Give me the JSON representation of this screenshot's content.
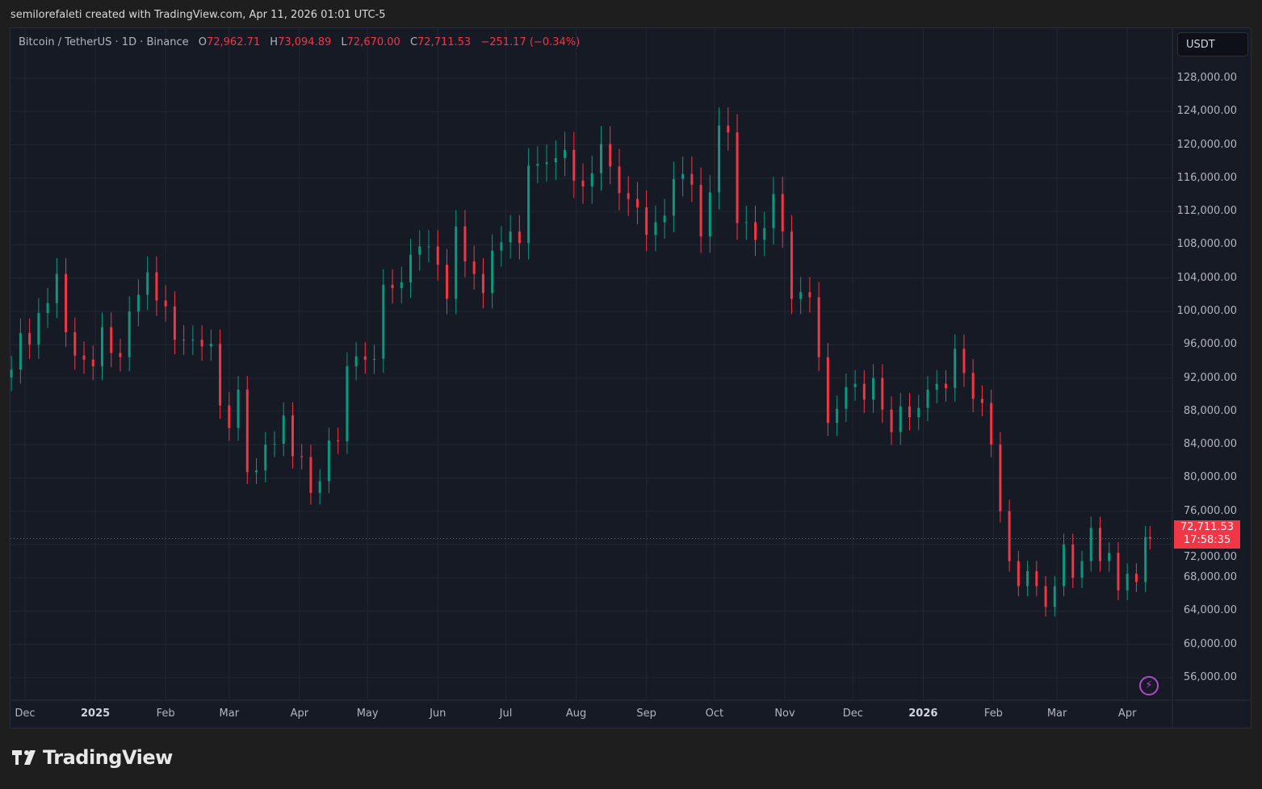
{
  "caption": "semilorefaleti created with TradingView.com, Apr 11, 2026 01:01 UTC-5",
  "legend": {
    "symbol": "Bitcoin / TetherUS · 1D · Binance",
    "open_label": "O",
    "open": "72,962.71",
    "high_label": "H",
    "high": "73,094.89",
    "low_label": "L",
    "low": "72,670.00",
    "close_label": "C",
    "close": "72,711.53",
    "change": "−251.17 (−0.34%)"
  },
  "currency_button": "USDT",
  "last_price": {
    "price": "72,711.53",
    "countdown": "17:58:35"
  },
  "logo_text": "TradingView",
  "alert_icon": "lightning-icon",
  "colors": {
    "up": "#089981",
    "down": "#f23645",
    "background": "#161a25",
    "grid": "#232733"
  },
  "chart_data": {
    "type": "candlestick",
    "ylim": [
      54000,
      130000
    ],
    "grid": true,
    "y_ticks": [
      "128,000.00",
      "124,000.00",
      "120,000.00",
      "116,000.00",
      "112,000.00",
      "108,000.00",
      "104,000.00",
      "100,000.00",
      "96,000.00",
      "92,000.00",
      "88,000.00",
      "84,000.00",
      "80,000.00",
      "76,000.00",
      "72,000.00",
      "68,000.00",
      "64,000.00",
      "60,000.00",
      "56,000.00"
    ],
    "x_ticks": [
      {
        "label": "Dec",
        "date": "2024-12-01"
      },
      {
        "label": "2025",
        "date": "2025-01-01",
        "bold": true
      },
      {
        "label": "Feb",
        "date": "2025-02-01"
      },
      {
        "label": "Mar",
        "date": "2025-03-01"
      },
      {
        "label": "Apr",
        "date": "2025-04-01"
      },
      {
        "label": "May",
        "date": "2025-05-01"
      },
      {
        "label": "Jun",
        "date": "2025-06-01"
      },
      {
        "label": "Jul",
        "date": "2025-07-01"
      },
      {
        "label": "Aug",
        "date": "2025-08-01"
      },
      {
        "label": "Sep",
        "date": "2025-09-01"
      },
      {
        "label": "Oct",
        "date": "2025-10-01"
      },
      {
        "label": "Nov",
        "date": "2025-11-01"
      },
      {
        "label": "Dec",
        "date": "2025-12-01"
      },
      {
        "label": "2026",
        "date": "2026-01-01",
        "bold": true
      },
      {
        "label": "Feb",
        "date": "2026-02-01"
      },
      {
        "label": "Mar",
        "date": "2026-03-01"
      },
      {
        "label": "Apr",
        "date": "2026-04-01"
      }
    ],
    "last_price": 72711.53,
    "series": [
      [
        "2024-11-25",
        93000
      ],
      [
        "2024-11-29",
        97400
      ],
      [
        "2024-12-03",
        96000
      ],
      [
        "2024-12-07",
        99800
      ],
      [
        "2024-12-11",
        101000
      ],
      [
        "2024-12-15",
        104500
      ],
      [
        "2024-12-19",
        97500
      ],
      [
        "2024-12-23",
        94700
      ],
      [
        "2024-12-27",
        94200
      ],
      [
        "2024-12-31",
        93400
      ],
      [
        "2025-01-04",
        98100
      ],
      [
        "2025-01-08",
        95000
      ],
      [
        "2025-01-12",
        94500
      ],
      [
        "2025-01-16",
        100000
      ],
      [
        "2025-01-20",
        102000
      ],
      [
        "2025-01-24",
        104700
      ],
      [
        "2025-01-28",
        101300
      ],
      [
        "2025-02-01",
        100600
      ],
      [
        "2025-02-05",
        96600
      ],
      [
        "2025-02-09",
        96500
      ],
      [
        "2025-02-13",
        96600
      ],
      [
        "2025-02-17",
        95800
      ],
      [
        "2025-02-21",
        96100
      ],
      [
        "2025-02-25",
        88700
      ],
      [
        "2025-03-01",
        86000
      ],
      [
        "2025-03-05",
        90600
      ],
      [
        "2025-03-09",
        80700
      ],
      [
        "2025-03-13",
        80900
      ],
      [
        "2025-03-17",
        84000
      ],
      [
        "2025-03-21",
        84100
      ],
      [
        "2025-03-25",
        87500
      ],
      [
        "2025-03-29",
        82600
      ],
      [
        "2025-04-02",
        82500
      ],
      [
        "2025-04-06",
        78200
      ],
      [
        "2025-04-10",
        79600
      ],
      [
        "2025-04-14",
        84500
      ],
      [
        "2025-04-18",
        84400
      ],
      [
        "2025-04-22",
        93400
      ],
      [
        "2025-04-26",
        94600
      ],
      [
        "2025-04-30",
        94200
      ],
      [
        "2025-05-04",
        94300
      ],
      [
        "2025-05-08",
        103200
      ],
      [
        "2025-05-12",
        102800
      ],
      [
        "2025-05-16",
        103500
      ],
      [
        "2025-05-20",
        106800
      ],
      [
        "2025-05-24",
        107800
      ],
      [
        "2025-05-28",
        107800
      ],
      [
        "2025-06-01",
        105600
      ],
      [
        "2025-06-05",
        101500
      ],
      [
        "2025-06-09",
        110200
      ],
      [
        "2025-06-13",
        106000
      ],
      [
        "2025-06-17",
        104500
      ],
      [
        "2025-06-21",
        102200
      ],
      [
        "2025-06-25",
        107300
      ],
      [
        "2025-06-29",
        108300
      ],
      [
        "2025-07-03",
        109600
      ],
      [
        "2025-07-07",
        108200
      ],
      [
        "2025-07-11",
        117500
      ],
      [
        "2025-07-15",
        117700
      ],
      [
        "2025-07-19",
        117900
      ],
      [
        "2025-07-23",
        118400
      ],
      [
        "2025-07-27",
        119400
      ],
      [
        "2025-07-31",
        115700
      ],
      [
        "2025-08-04",
        115000
      ],
      [
        "2025-08-08",
        116600
      ],
      [
        "2025-08-12",
        120100
      ],
      [
        "2025-08-16",
        117400
      ],
      [
        "2025-08-20",
        114200
      ],
      [
        "2025-08-24",
        113500
      ],
      [
        "2025-08-28",
        112500
      ],
      [
        "2025-09-01",
        109200
      ],
      [
        "2025-09-05",
        110700
      ],
      [
        "2025-09-09",
        111500
      ],
      [
        "2025-09-13",
        115900
      ],
      [
        "2025-09-17",
        116500
      ],
      [
        "2025-09-21",
        115200
      ],
      [
        "2025-09-25",
        109000
      ],
      [
        "2025-09-29",
        114300
      ],
      [
        "2025-10-03",
        122300
      ],
      [
        "2025-10-07",
        121500
      ],
      [
        "2025-10-11",
        110600
      ],
      [
        "2025-10-15",
        110700
      ],
      [
        "2025-10-19",
        108600
      ],
      [
        "2025-10-23",
        110000
      ],
      [
        "2025-10-27",
        114100
      ],
      [
        "2025-10-31",
        109600
      ],
      [
        "2025-11-04",
        101500
      ],
      [
        "2025-11-08",
        102300
      ],
      [
        "2025-11-12",
        101700
      ],
      [
        "2025-11-16",
        94500
      ],
      [
        "2025-11-20",
        86600
      ],
      [
        "2025-11-24",
        88300
      ],
      [
        "2025-11-28",
        90900
      ],
      [
        "2025-12-02",
        91300
      ],
      [
        "2025-12-06",
        89400
      ],
      [
        "2025-12-10",
        92000
      ],
      [
        "2025-12-14",
        88200
      ],
      [
        "2025-12-18",
        85500
      ],
      [
        "2025-12-22",
        88600
      ],
      [
        "2025-12-26",
        87300
      ],
      [
        "2025-12-30",
        88400
      ],
      [
        "2026-01-03",
        90600
      ],
      [
        "2026-01-07",
        91300
      ],
      [
        "2026-01-11",
        90800
      ],
      [
        "2026-01-15",
        95500
      ],
      [
        "2026-01-19",
        92600
      ],
      [
        "2026-01-23",
        89500
      ],
      [
        "2026-01-27",
        89000
      ],
      [
        "2026-01-31",
        84000
      ],
      [
        "2026-02-04",
        76000
      ],
      [
        "2026-02-08",
        70000
      ],
      [
        "2026-02-12",
        67000
      ],
      [
        "2026-02-16",
        68800
      ],
      [
        "2026-02-20",
        67000
      ],
      [
        "2026-02-24",
        64500
      ],
      [
        "2026-02-28",
        67000
      ],
      [
        "2026-03-04",
        72000
      ],
      [
        "2026-03-08",
        68000
      ],
      [
        "2026-03-12",
        70000
      ],
      [
        "2026-03-16",
        74000
      ],
      [
        "2026-03-20",
        70000
      ],
      [
        "2026-03-24",
        71000
      ],
      [
        "2026-03-28",
        66500
      ],
      [
        "2026-04-01",
        68500
      ],
      [
        "2026-04-05",
        67500
      ],
      [
        "2026-04-09",
        72900
      ],
      [
        "2026-04-11",
        72711.53
      ]
    ]
  }
}
